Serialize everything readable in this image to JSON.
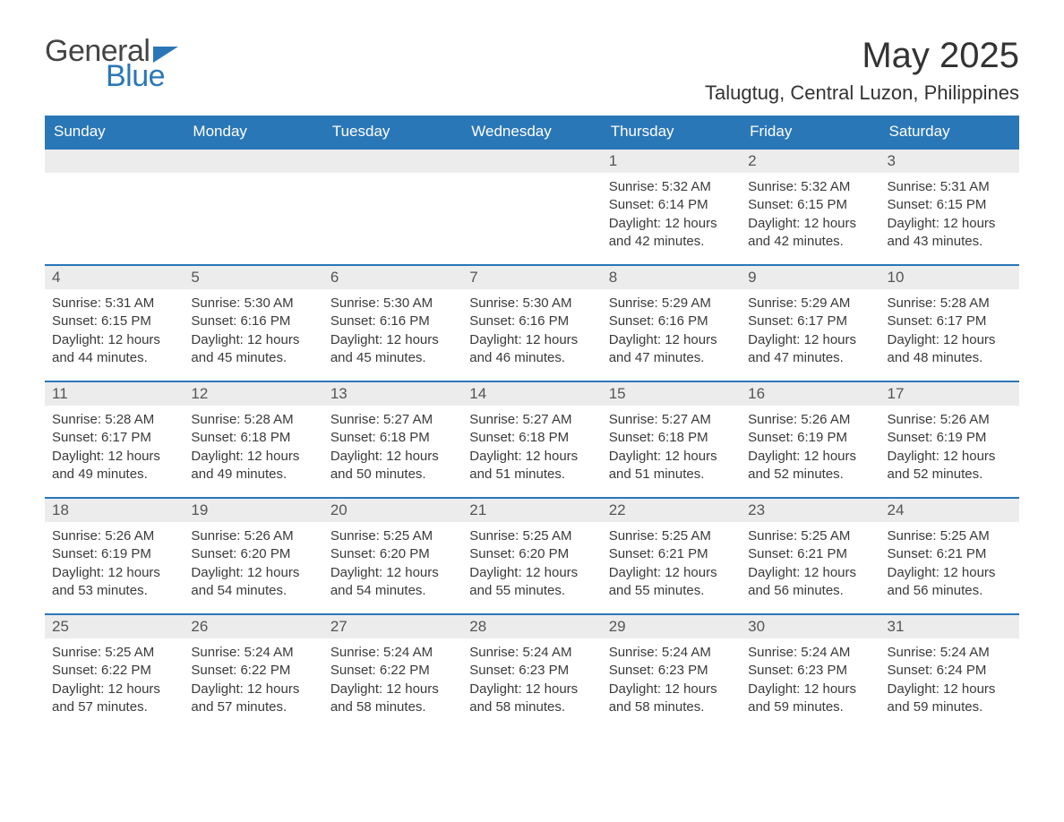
{
  "logo": {
    "text1": "General",
    "text2": "Blue"
  },
  "title": "May 2025",
  "location": "Talugtug, Central Luzon, Philippines",
  "colors": {
    "header_bg": "#2a77b8",
    "header_text": "#ffffff",
    "daynum_bg": "#ececec",
    "body_text": "#3a3a3a",
    "page_bg": "#ffffff"
  },
  "day_headers": [
    "Sunday",
    "Monday",
    "Tuesday",
    "Wednesday",
    "Thursday",
    "Friday",
    "Saturday"
  ],
  "weeks": [
    [
      {
        "n": "",
        "sunrise": "",
        "sunset": "",
        "daylight": ""
      },
      {
        "n": "",
        "sunrise": "",
        "sunset": "",
        "daylight": ""
      },
      {
        "n": "",
        "sunrise": "",
        "sunset": "",
        "daylight": ""
      },
      {
        "n": "",
        "sunrise": "",
        "sunset": "",
        "daylight": ""
      },
      {
        "n": "1",
        "sunrise": "Sunrise: 5:32 AM",
        "sunset": "Sunset: 6:14 PM",
        "daylight": "Daylight: 12 hours and 42 minutes."
      },
      {
        "n": "2",
        "sunrise": "Sunrise: 5:32 AM",
        "sunset": "Sunset: 6:15 PM",
        "daylight": "Daylight: 12 hours and 42 minutes."
      },
      {
        "n": "3",
        "sunrise": "Sunrise: 5:31 AM",
        "sunset": "Sunset: 6:15 PM",
        "daylight": "Daylight: 12 hours and 43 minutes."
      }
    ],
    [
      {
        "n": "4",
        "sunrise": "Sunrise: 5:31 AM",
        "sunset": "Sunset: 6:15 PM",
        "daylight": "Daylight: 12 hours and 44 minutes."
      },
      {
        "n": "5",
        "sunrise": "Sunrise: 5:30 AM",
        "sunset": "Sunset: 6:16 PM",
        "daylight": "Daylight: 12 hours and 45 minutes."
      },
      {
        "n": "6",
        "sunrise": "Sunrise: 5:30 AM",
        "sunset": "Sunset: 6:16 PM",
        "daylight": "Daylight: 12 hours and 45 minutes."
      },
      {
        "n": "7",
        "sunrise": "Sunrise: 5:30 AM",
        "sunset": "Sunset: 6:16 PM",
        "daylight": "Daylight: 12 hours and 46 minutes."
      },
      {
        "n": "8",
        "sunrise": "Sunrise: 5:29 AM",
        "sunset": "Sunset: 6:16 PM",
        "daylight": "Daylight: 12 hours and 47 minutes."
      },
      {
        "n": "9",
        "sunrise": "Sunrise: 5:29 AM",
        "sunset": "Sunset: 6:17 PM",
        "daylight": "Daylight: 12 hours and 47 minutes."
      },
      {
        "n": "10",
        "sunrise": "Sunrise: 5:28 AM",
        "sunset": "Sunset: 6:17 PM",
        "daylight": "Daylight: 12 hours and 48 minutes."
      }
    ],
    [
      {
        "n": "11",
        "sunrise": "Sunrise: 5:28 AM",
        "sunset": "Sunset: 6:17 PM",
        "daylight": "Daylight: 12 hours and 49 minutes."
      },
      {
        "n": "12",
        "sunrise": "Sunrise: 5:28 AM",
        "sunset": "Sunset: 6:18 PM",
        "daylight": "Daylight: 12 hours and 49 minutes."
      },
      {
        "n": "13",
        "sunrise": "Sunrise: 5:27 AM",
        "sunset": "Sunset: 6:18 PM",
        "daylight": "Daylight: 12 hours and 50 minutes."
      },
      {
        "n": "14",
        "sunrise": "Sunrise: 5:27 AM",
        "sunset": "Sunset: 6:18 PM",
        "daylight": "Daylight: 12 hours and 51 minutes."
      },
      {
        "n": "15",
        "sunrise": "Sunrise: 5:27 AM",
        "sunset": "Sunset: 6:18 PM",
        "daylight": "Daylight: 12 hours and 51 minutes."
      },
      {
        "n": "16",
        "sunrise": "Sunrise: 5:26 AM",
        "sunset": "Sunset: 6:19 PM",
        "daylight": "Daylight: 12 hours and 52 minutes."
      },
      {
        "n": "17",
        "sunrise": "Sunrise: 5:26 AM",
        "sunset": "Sunset: 6:19 PM",
        "daylight": "Daylight: 12 hours and 52 minutes."
      }
    ],
    [
      {
        "n": "18",
        "sunrise": "Sunrise: 5:26 AM",
        "sunset": "Sunset: 6:19 PM",
        "daylight": "Daylight: 12 hours and 53 minutes."
      },
      {
        "n": "19",
        "sunrise": "Sunrise: 5:26 AM",
        "sunset": "Sunset: 6:20 PM",
        "daylight": "Daylight: 12 hours and 54 minutes."
      },
      {
        "n": "20",
        "sunrise": "Sunrise: 5:25 AM",
        "sunset": "Sunset: 6:20 PM",
        "daylight": "Daylight: 12 hours and 54 minutes."
      },
      {
        "n": "21",
        "sunrise": "Sunrise: 5:25 AM",
        "sunset": "Sunset: 6:20 PM",
        "daylight": "Daylight: 12 hours and 55 minutes."
      },
      {
        "n": "22",
        "sunrise": "Sunrise: 5:25 AM",
        "sunset": "Sunset: 6:21 PM",
        "daylight": "Daylight: 12 hours and 55 minutes."
      },
      {
        "n": "23",
        "sunrise": "Sunrise: 5:25 AM",
        "sunset": "Sunset: 6:21 PM",
        "daylight": "Daylight: 12 hours and 56 minutes."
      },
      {
        "n": "24",
        "sunrise": "Sunrise: 5:25 AM",
        "sunset": "Sunset: 6:21 PM",
        "daylight": "Daylight: 12 hours and 56 minutes."
      }
    ],
    [
      {
        "n": "25",
        "sunrise": "Sunrise: 5:25 AM",
        "sunset": "Sunset: 6:22 PM",
        "daylight": "Daylight: 12 hours and 57 minutes."
      },
      {
        "n": "26",
        "sunrise": "Sunrise: 5:24 AM",
        "sunset": "Sunset: 6:22 PM",
        "daylight": "Daylight: 12 hours and 57 minutes."
      },
      {
        "n": "27",
        "sunrise": "Sunrise: 5:24 AM",
        "sunset": "Sunset: 6:22 PM",
        "daylight": "Daylight: 12 hours and 58 minutes."
      },
      {
        "n": "28",
        "sunrise": "Sunrise: 5:24 AM",
        "sunset": "Sunset: 6:23 PM",
        "daylight": "Daylight: 12 hours and 58 minutes."
      },
      {
        "n": "29",
        "sunrise": "Sunrise: 5:24 AM",
        "sunset": "Sunset: 6:23 PM",
        "daylight": "Daylight: 12 hours and 58 minutes."
      },
      {
        "n": "30",
        "sunrise": "Sunrise: 5:24 AM",
        "sunset": "Sunset: 6:23 PM",
        "daylight": "Daylight: 12 hours and 59 minutes."
      },
      {
        "n": "31",
        "sunrise": "Sunrise: 5:24 AM",
        "sunset": "Sunset: 6:24 PM",
        "daylight": "Daylight: 12 hours and 59 minutes."
      }
    ]
  ]
}
